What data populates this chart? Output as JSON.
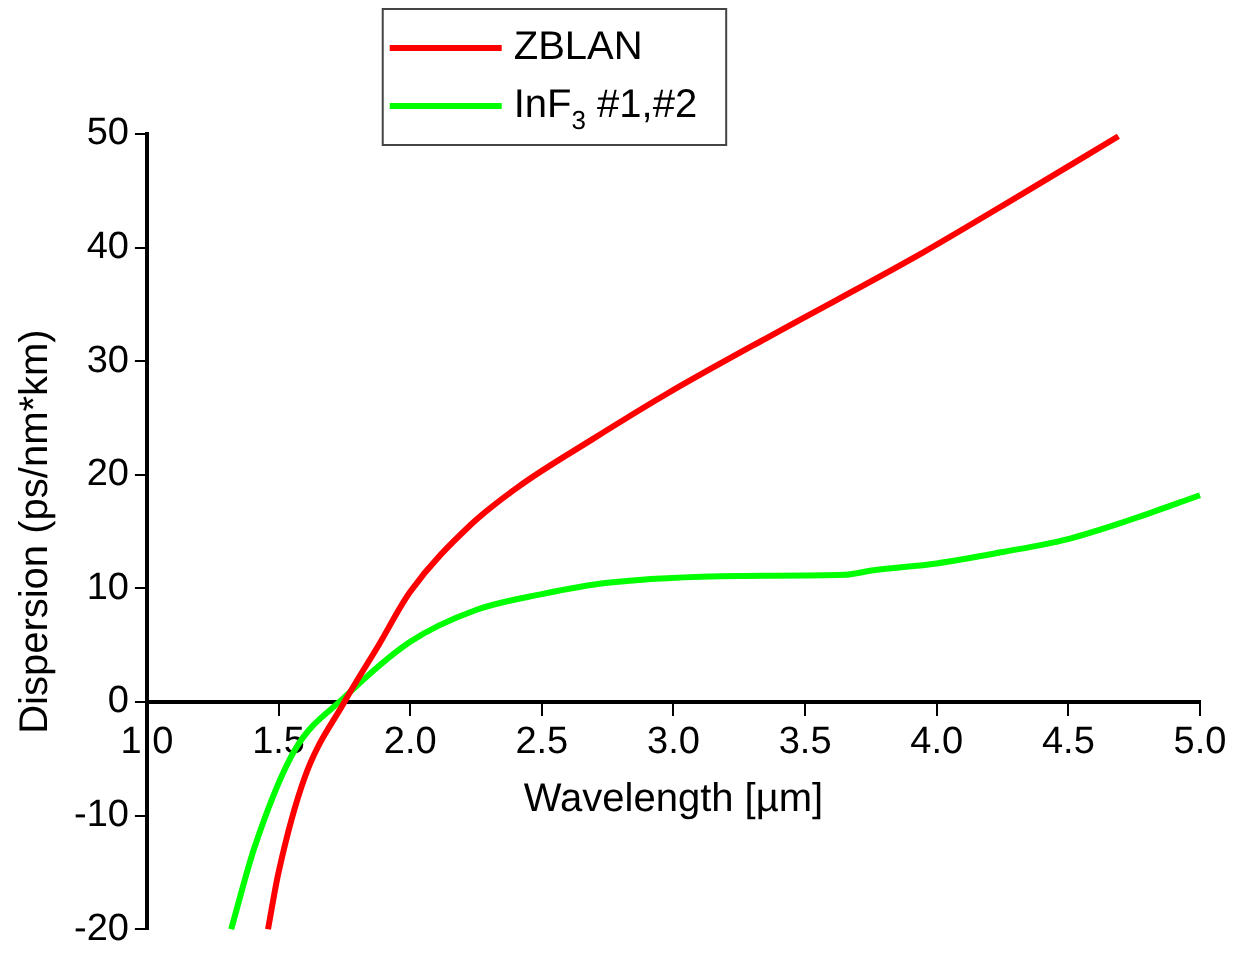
{
  "chart_data": {
    "type": "line",
    "xlabel": "Wavelength [µm]",
    "ylabel": "Dispersion (ps/nm*km)",
    "xlim": [
      1.0,
      5.0
    ],
    "xticks": [
      {
        "value": 1.0,
        "label": "1.0"
      },
      {
        "value": 1.5,
        "label": "1.5"
      },
      {
        "value": 2.0,
        "label": "2.0"
      },
      {
        "value": 2.5,
        "label": "2.5"
      },
      {
        "value": 3.0,
        "label": "3.0"
      },
      {
        "value": 3.5,
        "label": "3.5"
      },
      {
        "value": 4.0,
        "label": "4.0"
      },
      {
        "value": 4.5,
        "label": "4.5"
      },
      {
        "value": 5.0,
        "label": "5.0"
      }
    ],
    "ylim": [
      -20,
      50
    ],
    "yticks": [
      -20,
      -10,
      0,
      10,
      20,
      30,
      40,
      50
    ],
    "grid": false,
    "legend": "top",
    "marker": "none",
    "line_style": "solid",
    "series": [
      {
        "name": "ZBLAN",
        "color": "#ff0000",
        "x": [
          1.46,
          1.5,
          1.6,
          1.75,
          1.88,
          2.0,
          2.23,
          2.42,
          2.69,
          2.98,
          3.39,
          3.92,
          4.33,
          4.69
        ],
        "values": [
          -20,
          -15,
          -6.6,
          0,
          5,
          9.7,
          15.6,
          19.1,
          23.1,
          27.2,
          32.5,
          39.2,
          44.8,
          49.8
        ]
      },
      {
        "name": "InF$_{3}$ #1,#2",
        "color": "#00ff00",
        "x": [
          1.32,
          1.41,
          1.56,
          1.75,
          2.0,
          2.25,
          2.5,
          2.75,
          3.25,
          3.65,
          3.76,
          4.0,
          4.25,
          4.49,
          4.73,
          5.0
        ],
        "values": [
          -20,
          -12.7,
          -4.3,
          0.4,
          5.3,
          8.1,
          9.5,
          10.5,
          11.1,
          11.2,
          11.6,
          12.2,
          13.2,
          14.3,
          16.0,
          18.2
        ]
      }
    ]
  }
}
